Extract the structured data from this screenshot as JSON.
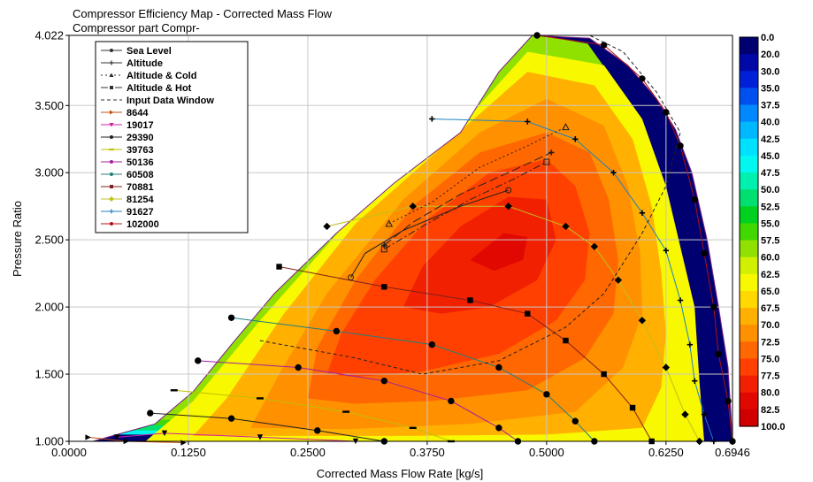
{
  "chart_data": {
    "type": "heatmap",
    "title": "Compressor Efficiency Map - Corrected Mass Flow",
    "subtitle": "Compressor part Compr-",
    "xlabel": "Corrected Mass Flow Rate [kg/s]",
    "ylabel": "Pressure Ratio",
    "xlim": [
      0.0,
      0.6946
    ],
    "ylim": [
      1.0,
      4.022
    ],
    "x_ticks": [
      "0.0000",
      "0.1250",
      "0.2500",
      "0.3750",
      "0.5000",
      "0.6250",
      "0.6946"
    ],
    "x_tick_values": [
      0.0,
      0.125,
      0.25,
      0.375,
      0.5,
      0.625,
      0.6946
    ],
    "y_ticks": [
      "1.000",
      "1.500",
      "2.000",
      "2.500",
      "3.000",
      "3.500",
      "4.022"
    ],
    "y_tick_values": [
      1.0,
      1.5,
      2.0,
      2.5,
      3.0,
      3.5,
      4.022
    ],
    "grid": true,
    "legend_position": "top-left",
    "legend": [
      {
        "name": "Sea Level",
        "color": "#303030",
        "dash": "",
        "marker": "circle"
      },
      {
        "name": "Altitude",
        "color": "#303030",
        "dash": "10,4",
        "marker": "plus"
      },
      {
        "name": "Altitude & Cold",
        "color": "#303030",
        "dash": "2,3",
        "marker": "triangle"
      },
      {
        "name": "Altitude & Hot",
        "color": "#303030",
        "dash": "8,3,2,3",
        "marker": "square"
      },
      {
        "name": "Input Data Window",
        "color": "#303030",
        "dash": "4,3",
        "marker": "none"
      },
      {
        "name": "8644",
        "color": "#c05010",
        "dash": "",
        "marker": "tri-right"
      },
      {
        "name": "19017",
        "color": "#d020a0",
        "dash": "",
        "marker": "tri-down"
      },
      {
        "name": "29390",
        "color": "#202020",
        "dash": "",
        "marker": "circle"
      },
      {
        "name": "39763",
        "color": "#c0c000",
        "dash": "",
        "marker": "dash"
      },
      {
        "name": "50136",
        "color": "#a020a0",
        "dash": "",
        "marker": "circle"
      },
      {
        "name": "60508",
        "color": "#208080",
        "dash": "",
        "marker": "circle"
      },
      {
        "name": "70881",
        "color": "#802020",
        "dash": "",
        "marker": "square"
      },
      {
        "name": "81254",
        "color": "#c0c020",
        "dash": "",
        "marker": "diamond"
      },
      {
        "name": "91627",
        "color": "#2080c0",
        "dash": "",
        "marker": "plus"
      },
      {
        "name": "102000",
        "color": "#b01010",
        "dash": "",
        "marker": "circle"
      }
    ],
    "colorbar": {
      "labels": [
        "0.0",
        "20.0",
        "30.0",
        "35.0",
        "37.5",
        "40.0",
        "42.5",
        "45.0",
        "47.5",
        "50.0",
        "52.5",
        "55.0",
        "57.5",
        "60.0",
        "62.5",
        "65.0",
        "67.5",
        "70.0",
        "72.5",
        "75.0",
        "77.5",
        "80.0",
        "82.5",
        "100.0"
      ],
      "colors": [
        "#000070",
        "#0008a8",
        "#0020d8",
        "#0050f0",
        "#0088ff",
        "#00b8ff",
        "#00e0ff",
        "#00f8f0",
        "#00f0b0",
        "#00e070",
        "#00d020",
        "#40d800",
        "#90e000",
        "#d0f000",
        "#f8f800",
        "#ffd800",
        "#ffb000",
        "#ff9000",
        "#ff6800",
        "#ff4000",
        "#f02000",
        "#e00800",
        "#d00000"
      ]
    },
    "region_boundary": [
      [
        0.025,
        1.0
      ],
      [
        0.09,
        1.13
      ],
      [
        0.13,
        1.37
      ],
      [
        0.17,
        1.72
      ],
      [
        0.215,
        2.1
      ],
      [
        0.28,
        2.55
      ],
      [
        0.34,
        2.92
      ],
      [
        0.41,
        3.3
      ],
      [
        0.45,
        3.75
      ],
      [
        0.485,
        4.022
      ],
      [
        0.545,
        4.0
      ],
      [
        0.585,
        3.8
      ],
      [
        0.615,
        3.55
      ],
      [
        0.635,
        3.32
      ],
      [
        0.652,
        3.0
      ],
      [
        0.668,
        2.5
      ],
      [
        0.68,
        2.0
      ],
      [
        0.69,
        1.55
      ],
      [
        0.6946,
        1.0
      ]
    ],
    "efficiency_regions": [
      {
        "level": "62.5",
        "path": [
          [
            0.08,
            1.0
          ],
          [
            0.13,
            1.3
          ],
          [
            0.2,
            1.9
          ],
          [
            0.3,
            2.7
          ],
          [
            0.41,
            3.35
          ],
          [
            0.48,
            3.9
          ],
          [
            0.56,
            3.8
          ],
          [
            0.6,
            3.4
          ],
          [
            0.625,
            2.9
          ],
          [
            0.64,
            2.45
          ],
          [
            0.655,
            2.0
          ],
          [
            0.66,
            1.45
          ],
          [
            0.665,
            1.0
          ]
        ]
      },
      {
        "level": "67.5",
        "path": [
          [
            0.13,
            1.04
          ],
          [
            0.165,
            1.32
          ],
          [
            0.225,
            1.95
          ],
          [
            0.3,
            2.62
          ],
          [
            0.4,
            3.25
          ],
          [
            0.48,
            3.75
          ],
          [
            0.55,
            3.65
          ],
          [
            0.59,
            3.25
          ],
          [
            0.61,
            2.75
          ],
          [
            0.62,
            2.25
          ],
          [
            0.625,
            1.8
          ],
          [
            0.62,
            1.4
          ],
          [
            0.6,
            1.1
          ],
          [
            0.5,
            1.05
          ],
          [
            0.35,
            1.04
          ]
        ]
      },
      {
        "level": "70.0",
        "path": [
          [
            0.19,
            1.1
          ],
          [
            0.22,
            1.5
          ],
          [
            0.27,
            2.1
          ],
          [
            0.35,
            2.8
          ],
          [
            0.43,
            3.3
          ],
          [
            0.5,
            3.55
          ],
          [
            0.56,
            3.35
          ],
          [
            0.585,
            2.9
          ],
          [
            0.598,
            2.4
          ],
          [
            0.6,
            1.95
          ],
          [
            0.58,
            1.55
          ],
          [
            0.53,
            1.22
          ],
          [
            0.42,
            1.13
          ],
          [
            0.29,
            1.09
          ]
        ]
      },
      {
        "level": "72.5",
        "path": [
          [
            0.25,
            1.32
          ],
          [
            0.26,
            1.7
          ],
          [
            0.3,
            2.2
          ],
          [
            0.36,
            2.75
          ],
          [
            0.43,
            3.15
          ],
          [
            0.5,
            3.3
          ],
          [
            0.545,
            3.15
          ],
          [
            0.565,
            2.8
          ],
          [
            0.575,
            2.35
          ],
          [
            0.57,
            1.95
          ],
          [
            0.54,
            1.62
          ],
          [
            0.48,
            1.38
          ],
          [
            0.38,
            1.3
          ],
          [
            0.3,
            1.28
          ]
        ]
      },
      {
        "level": "75.0",
        "path": [
          [
            0.27,
            1.5
          ],
          [
            0.285,
            1.8
          ],
          [
            0.32,
            2.2
          ],
          [
            0.375,
            2.65
          ],
          [
            0.44,
            3.0
          ],
          [
            0.5,
            3.1
          ],
          [
            0.53,
            2.9
          ],
          [
            0.545,
            2.55
          ],
          [
            0.54,
            2.2
          ],
          [
            0.51,
            1.9
          ],
          [
            0.45,
            1.65
          ],
          [
            0.37,
            1.52
          ],
          [
            0.3,
            1.48
          ]
        ]
      },
      {
        "level": "77.5",
        "path": [
          [
            0.35,
            2.0
          ],
          [
            0.37,
            2.3
          ],
          [
            0.41,
            2.6
          ],
          [
            0.46,
            2.82
          ],
          [
            0.5,
            2.8
          ],
          [
            0.51,
            2.5
          ],
          [
            0.49,
            2.2
          ],
          [
            0.44,
            2.0
          ],
          [
            0.39,
            1.95
          ]
        ]
      },
      {
        "level": "80.0",
        "path": [
          [
            0.42,
            2.35
          ],
          [
            0.455,
            2.55
          ],
          [
            0.48,
            2.52
          ],
          [
            0.475,
            2.35
          ],
          [
            0.445,
            2.27
          ]
        ]
      }
    ],
    "speed_lines": [
      {
        "name": "8644",
        "color": "#c05010",
        "points": [
          [
            0.02,
            1.03
          ],
          [
            0.06,
            1.0
          ],
          [
            0.12,
            0.99
          ]
        ]
      },
      {
        "name": "19017",
        "color": "#d020a0",
        "points": [
          [
            0.05,
            1.03
          ],
          [
            0.1,
            1.06
          ],
          [
            0.2,
            1.03
          ],
          [
            0.3,
            1.0
          ]
        ]
      },
      {
        "name": "29390",
        "color": "#202020",
        "points": [
          [
            0.085,
            1.21
          ],
          [
            0.17,
            1.17
          ],
          [
            0.26,
            1.08
          ],
          [
            0.33,
            1.0
          ]
        ]
      },
      {
        "name": "39763",
        "color": "#c0c000",
        "points": [
          [
            0.11,
            1.38
          ],
          [
            0.2,
            1.32
          ],
          [
            0.29,
            1.22
          ],
          [
            0.36,
            1.1
          ],
          [
            0.4,
            1.0
          ]
        ]
      },
      {
        "name": "50136",
        "color": "#a020a0",
        "points": [
          [
            0.135,
            1.6
          ],
          [
            0.24,
            1.55
          ],
          [
            0.33,
            1.45
          ],
          [
            0.4,
            1.3
          ],
          [
            0.45,
            1.1
          ],
          [
            0.47,
            1.0
          ]
        ]
      },
      {
        "name": "60508",
        "color": "#208080",
        "points": [
          [
            0.17,
            1.92
          ],
          [
            0.28,
            1.82
          ],
          [
            0.38,
            1.72
          ],
          [
            0.45,
            1.55
          ],
          [
            0.5,
            1.35
          ],
          [
            0.53,
            1.15
          ],
          [
            0.55,
            1.0
          ]
        ]
      },
      {
        "name": "70881",
        "color": "#802020",
        "points": [
          [
            0.22,
            2.3
          ],
          [
            0.33,
            2.15
          ],
          [
            0.42,
            2.05
          ],
          [
            0.48,
            1.95
          ],
          [
            0.52,
            1.75
          ],
          [
            0.56,
            1.5
          ],
          [
            0.59,
            1.25
          ],
          [
            0.61,
            1.0
          ]
        ]
      },
      {
        "name": "81254",
        "color": "#c0c020",
        "points": [
          [
            0.27,
            2.6
          ],
          [
            0.36,
            2.75
          ],
          [
            0.46,
            2.75
          ],
          [
            0.52,
            2.6
          ],
          [
            0.55,
            2.45
          ],
          [
            0.575,
            2.2
          ],
          [
            0.6,
            1.9
          ],
          [
            0.625,
            1.55
          ],
          [
            0.645,
            1.2
          ],
          [
            0.66,
            1.0
          ]
        ]
      },
      {
        "name": "91627",
        "color": "#2080c0",
        "points": [
          [
            0.38,
            3.4
          ],
          [
            0.48,
            3.38
          ],
          [
            0.53,
            3.25
          ],
          [
            0.57,
            3.0
          ],
          [
            0.6,
            2.7
          ],
          [
            0.625,
            2.42
          ],
          [
            0.64,
            2.05
          ],
          [
            0.65,
            1.72
          ],
          [
            0.655,
            1.45
          ],
          [
            0.665,
            1.2
          ],
          [
            0.675,
            1.0
          ]
        ]
      },
      {
        "name": "102000",
        "color": "#b01010",
        "points": [
          [
            0.49,
            4.022
          ],
          [
            0.56,
            3.95
          ],
          [
            0.6,
            3.7
          ],
          [
            0.625,
            3.45
          ],
          [
            0.64,
            3.2
          ],
          [
            0.655,
            2.8
          ],
          [
            0.665,
            2.4
          ],
          [
            0.675,
            2.0
          ],
          [
            0.68,
            1.65
          ],
          [
            0.69,
            1.3
          ],
          [
            0.6946,
            1.0
          ]
        ]
      }
    ],
    "data_window": [
      [
        0.2,
        1.75
      ],
      [
        0.3,
        1.62
      ],
      [
        0.37,
        1.5
      ],
      [
        0.45,
        1.6
      ],
      [
        0.52,
        1.85
      ],
      [
        0.56,
        2.1
      ],
      [
        0.6,
        2.55
      ],
      [
        0.625,
        2.9
      ],
      [
        0.64,
        3.3
      ],
      [
        0.615,
        3.6
      ],
      [
        0.58,
        3.9
      ],
      [
        0.545,
        4.022
      ]
    ],
    "operating_lines": [
      {
        "name": "Sea Level",
        "marker": "circle",
        "dash": "",
        "points": [
          [
            0.295,
            2.22
          ],
          [
            0.31,
            2.4
          ],
          [
            0.35,
            2.57
          ],
          [
            0.41,
            2.75
          ],
          [
            0.46,
            2.87
          ]
        ]
      },
      {
        "name": "Altitude",
        "marker": "plus",
        "dash": "10,4",
        "points": [
          [
            0.33,
            2.46
          ],
          [
            0.36,
            2.63
          ],
          [
            0.41,
            2.84
          ],
          [
            0.46,
            3.0
          ],
          [
            0.505,
            3.15
          ]
        ]
      },
      {
        "name": "Altitude & Cold",
        "marker": "triangle",
        "dash": "2,3",
        "points": [
          [
            0.335,
            2.62
          ],
          [
            0.38,
            2.78
          ],
          [
            0.43,
            3.04
          ],
          [
            0.48,
            3.2
          ],
          [
            0.52,
            3.34
          ]
        ]
      },
      {
        "name": "Altitude & Hot",
        "marker": "square",
        "dash": "8,3,2,3",
        "points": [
          [
            0.33,
            2.43
          ],
          [
            0.37,
            2.6
          ],
          [
            0.42,
            2.8
          ],
          [
            0.465,
            2.95
          ],
          [
            0.5,
            3.08
          ]
        ]
      }
    ]
  }
}
